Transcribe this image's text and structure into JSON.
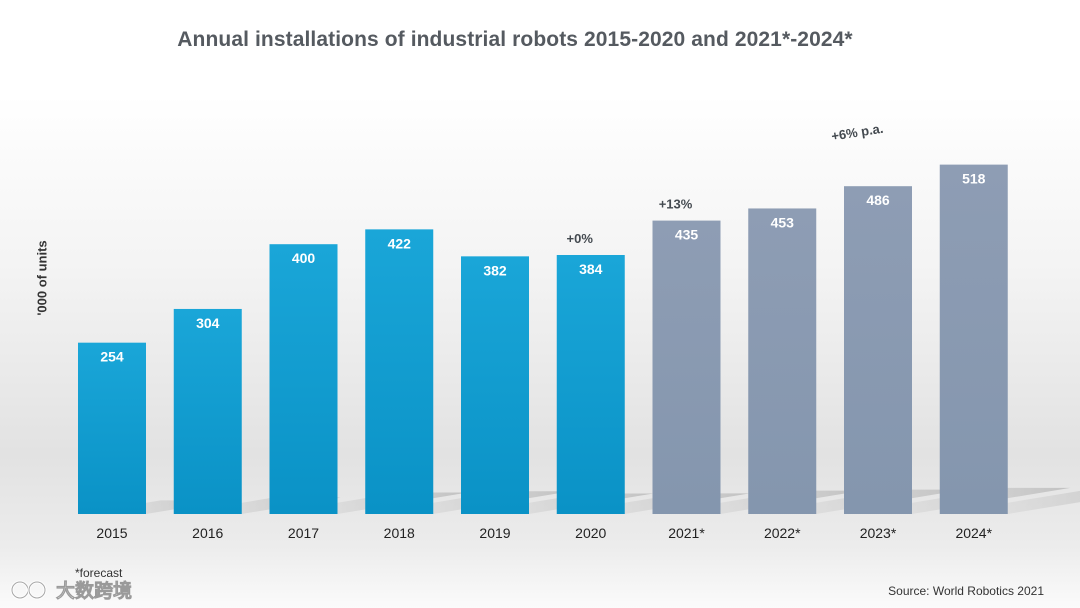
{
  "chart_data": {
    "type": "bar",
    "title": "Annual installations of industrial robots 2015-2020 and 2021*-2024*",
    "ylabel": "'000 of units",
    "xlabel": "",
    "categories": [
      "2015",
      "2016",
      "2017",
      "2018",
      "2019",
      "2020",
      "2021*",
      "2022*",
      "2023*",
      "2024*"
    ],
    "values": [
      254,
      304,
      400,
      422,
      382,
      384,
      435,
      453,
      486,
      518
    ],
    "forecast": [
      false,
      false,
      false,
      false,
      false,
      false,
      true,
      true,
      true,
      true
    ],
    "ylim": [
      0,
      590
    ],
    "annotations": [
      {
        "text": "+0%",
        "category": "2020"
      },
      {
        "text": "+13%",
        "category": "2021*"
      },
      {
        "text": "+6% p.a.",
        "category": "2022*-2024*"
      }
    ],
    "colors": {
      "actual": "#0f9fd3",
      "forecast": "#8b9bb2",
      "shadow": "#c8c8c8"
    }
  },
  "footnote": "*forecast",
  "source": "Source: World Robotics 2021",
  "watermark": "大数跨境"
}
